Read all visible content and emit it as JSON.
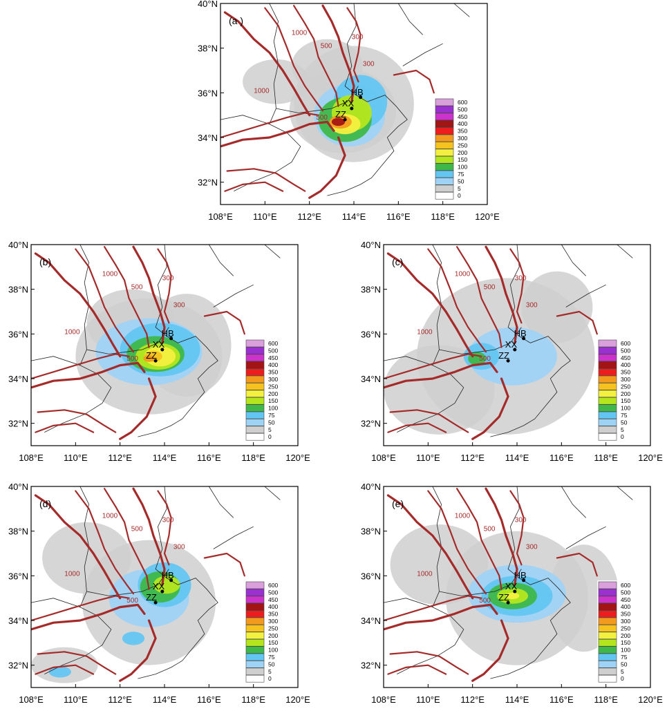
{
  "panels": [
    {
      "tag": "(a )"
    },
    {
      "tag": "(b)"
    },
    {
      "tag": "(c)"
    },
    {
      "tag": "(d)"
    },
    {
      "tag": "(e)"
    }
  ],
  "axes": {
    "x_ticks": [
      "108°E",
      "110°E",
      "112°E",
      "114°E",
      "116°E",
      "118°E",
      "120°E"
    ],
    "y_ticks": [
      "40°N",
      "38°N",
      "36°N",
      "34°N",
      "32°N"
    ],
    "lon_range": [
      108,
      120
    ],
    "lat_range": [
      31,
      40
    ]
  },
  "legend": {
    "levels": [
      "600",
      "500",
      "450",
      "400",
      "350",
      "300",
      "250",
      "200",
      "150",
      "100",
      "75",
      "50",
      "5",
      "0"
    ],
    "colors": [
      "#d9a0dc",
      "#9b30d0",
      "#cc33cc",
      "#a31515",
      "#ee1c1c",
      "#f39a1e",
      "#f6c21d",
      "#f4f040",
      "#b5e61d",
      "#3fb84a",
      "#63c6f2",
      "#9fd3f5",
      "#cfcfcf",
      "#ffffff"
    ]
  },
  "stations": {
    "hb": "HB",
    "xx": "XX",
    "zz": "ZZ"
  },
  "terrain_contours": {
    "labels": [
      "300",
      "500",
      "1000"
    ],
    "color": "#a52a2a"
  }
}
